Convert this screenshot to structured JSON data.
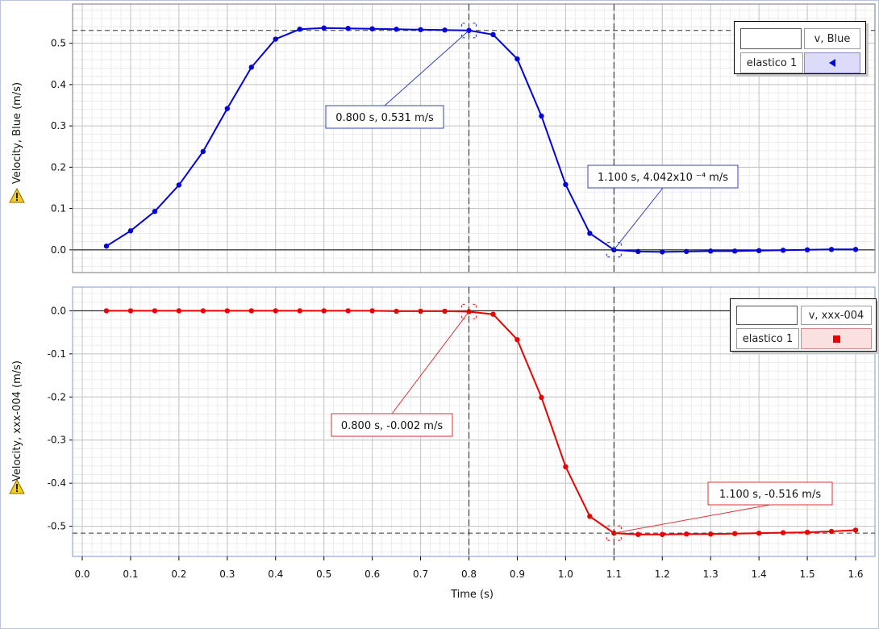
{
  "x_axis_title": "Time (s)",
  "colors": {
    "blue": "#0000e0",
    "red": "#ee0000",
    "grid_minor": "#ececec",
    "grid_major": "#c4c4c4"
  },
  "chart_data": [
    {
      "type": "line",
      "ylabel": "Velocity, Blue (m/s)",
      "xlabel": "Time (s)",
      "xlim": [
        -0.02,
        1.64
      ],
      "ylim": [
        -0.055,
        0.595
      ],
      "x_ticks": [
        "0.0",
        "0.1",
        "0.2",
        "0.3",
        "0.4",
        "0.5",
        "0.6",
        "0.7",
        "0.8",
        "0.9",
        "1.0",
        "1.1",
        "1.2",
        "1.3",
        "1.4",
        "1.5",
        "1.6"
      ],
      "y_ticks": [
        "0.0",
        "0.1",
        "0.2",
        "0.3",
        "0.4",
        "0.5"
      ],
      "y_tick_values": [
        0,
        0.1,
        0.2,
        0.3,
        0.4,
        0.5
      ],
      "grid": true,
      "legend": {
        "placement": "top-right",
        "header": "v, Blue",
        "row": "elastico 1",
        "symbol": "triangle-left"
      },
      "series": [
        {
          "name": "v, Blue",
          "color": "#0000e0",
          "x": [
            0.05,
            0.1,
            0.15,
            0.2,
            0.25,
            0.3,
            0.35,
            0.4,
            0.45,
            0.5,
            0.55,
            0.6,
            0.65,
            0.7,
            0.75,
            0.8,
            0.85,
            0.9,
            0.95,
            1.0,
            1.05,
            1.1,
            1.15,
            1.2,
            1.25,
            1.3,
            1.35,
            1.4,
            1.45,
            1.5,
            1.55,
            1.6
          ],
          "y": [
            0.009,
            0.046,
            0.093,
            0.157,
            0.238,
            0.342,
            0.442,
            0.51,
            0.534,
            0.537,
            0.536,
            0.535,
            0.534,
            0.533,
            0.532,
            0.531,
            0.521,
            0.462,
            0.324,
            0.158,
            0.04,
            0.0,
            -0.004,
            -0.005,
            -0.004,
            -0.003,
            -0.003,
            -0.002,
            -0.001,
            0.0,
            0.001,
            0.001
          ]
        }
      ],
      "crosshair": {
        "x": 0.8,
        "y": 0.531
      },
      "annotations": [
        {
          "text": "0.800 s, 0.531 m/s",
          "x": 0.8,
          "y": 0.531
        },
        {
          "text": "1.100 s, 4.042x10 ⁻⁴ m/s",
          "x": 1.1,
          "y": 0.0004
        }
      ]
    },
    {
      "type": "line",
      "ylabel": "Velocity, xxx-004 (m/s)",
      "xlabel": "Time (s)",
      "xlim": [
        -0.02,
        1.64
      ],
      "ylim": [
        -0.57,
        0.055
      ],
      "x_ticks": [
        "0.0",
        "0.1",
        "0.2",
        "0.3",
        "0.4",
        "0.5",
        "0.6",
        "0.7",
        "0.8",
        "0.9",
        "1.0",
        "1.1",
        "1.2",
        "1.3",
        "1.4",
        "1.5",
        "1.6"
      ],
      "y_ticks": [
        "0.0",
        "-0.1",
        "-0.2",
        "-0.3",
        "-0.4",
        "-0.5"
      ],
      "y_tick_values": [
        0,
        -0.1,
        -0.2,
        -0.3,
        -0.4,
        -0.5
      ],
      "grid": true,
      "legend": {
        "placement": "top-right",
        "header": "v, xxx-004",
        "row": "elastico 1",
        "symbol": "square"
      },
      "series": [
        {
          "name": "v, xxx-004",
          "color": "#ee0000",
          "x": [
            0.05,
            0.1,
            0.15,
            0.2,
            0.25,
            0.3,
            0.35,
            0.4,
            0.45,
            0.5,
            0.55,
            0.6,
            0.65,
            0.7,
            0.75,
            0.8,
            0.85,
            0.9,
            0.95,
            1.0,
            1.05,
            1.1,
            1.15,
            1.2,
            1.25,
            1.3,
            1.35,
            1.4,
            1.45,
            1.5,
            1.55,
            1.6
          ],
          "y": [
            0.0,
            0.0,
            0.0,
            0.0,
            0.0,
            0.0,
            0.0,
            0.0,
            0.0,
            0.0,
            0.0,
            0.0,
            -0.001,
            -0.001,
            -0.001,
            -0.002,
            -0.008,
            -0.067,
            -0.201,
            -0.362,
            -0.477,
            -0.516,
            -0.519,
            -0.519,
            -0.518,
            -0.518,
            -0.517,
            -0.516,
            -0.515,
            -0.514,
            -0.512,
            -0.509
          ]
        }
      ],
      "crosshair": {
        "x": 1.1,
        "y": -0.516
      },
      "annotations": [
        {
          "text": "0.800 s, -0.002 m/s",
          "x": 0.8,
          "y": -0.002
        },
        {
          "text": "1.100 s, -0.516 m/s",
          "x": 1.1,
          "y": -0.516
        }
      ]
    }
  ]
}
